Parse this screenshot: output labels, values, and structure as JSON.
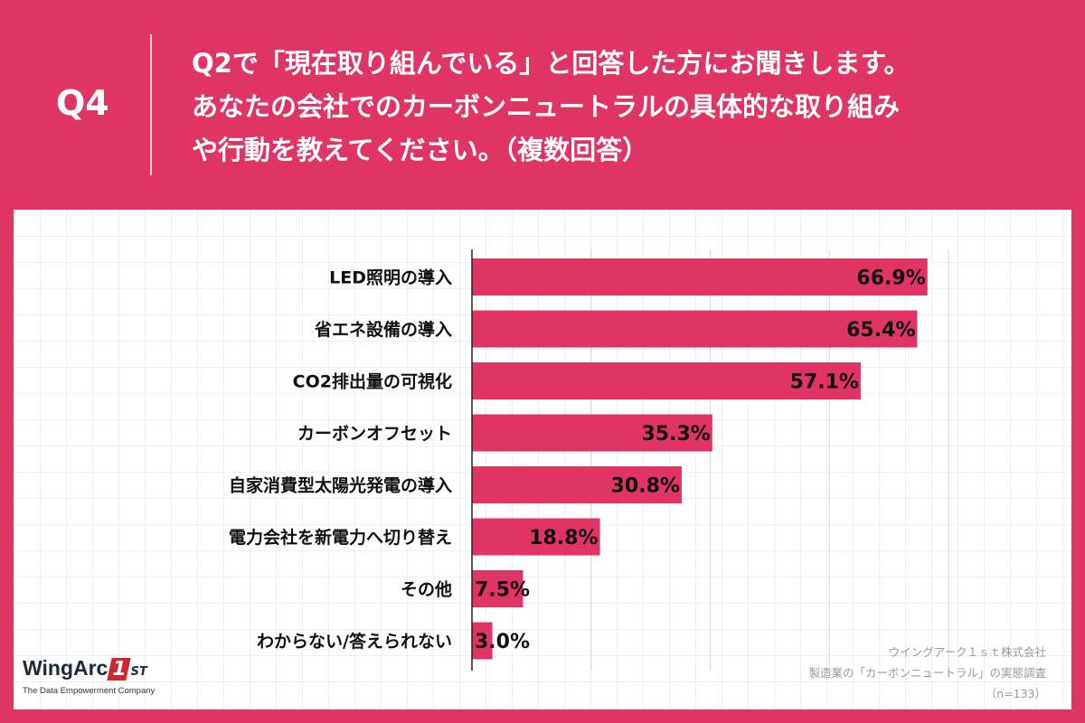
{
  "header": {
    "question_number": "Q4",
    "question_lines": [
      "Q2で「現在取り組んでいる」と回答した方にお聞きします。",
      "あなたの会社でのカーボンニュートラルの具体的な取り組み",
      "や行動を教えてください。（複数回答）"
    ]
  },
  "colors": {
    "background": "#e03564",
    "bar": "#e03564",
    "panel": "#ffffff"
  },
  "chart_data": {
    "type": "bar",
    "orientation": "horizontal",
    "unit": "%",
    "categories": [
      "LED照明の導入",
      "省エネ設備の導入",
      "CO2排出量の可視化",
      "カーボンオフセット",
      "自家消費型太陽光発電の導入",
      "電力会社を新電力へ切り替え",
      "その他",
      "わからない/答えられない"
    ],
    "values": [
      66.9,
      65.4,
      57.1,
      35.3,
      30.8,
      18.8,
      7.5,
      3.0
    ],
    "labels": [
      "66.9%",
      "65.4%",
      "57.1%",
      "35.3%",
      "30.8%",
      "18.8%",
      "7.5%",
      "3.0%"
    ],
    "xlim": [
      0,
      70
    ],
    "grid_interval": 17.5,
    "grid": true,
    "legend": "none"
  },
  "credit": {
    "company": "ウイングアーク１ｓｔ株式会社",
    "survey": "製造業の「カーボンニュートラル」の実態調査",
    "sample": "（n=133）"
  },
  "logo": {
    "name": "WingArc",
    "mark": "1",
    "suffix": "ST",
    "tagline": "The Data Empowerment Company"
  }
}
